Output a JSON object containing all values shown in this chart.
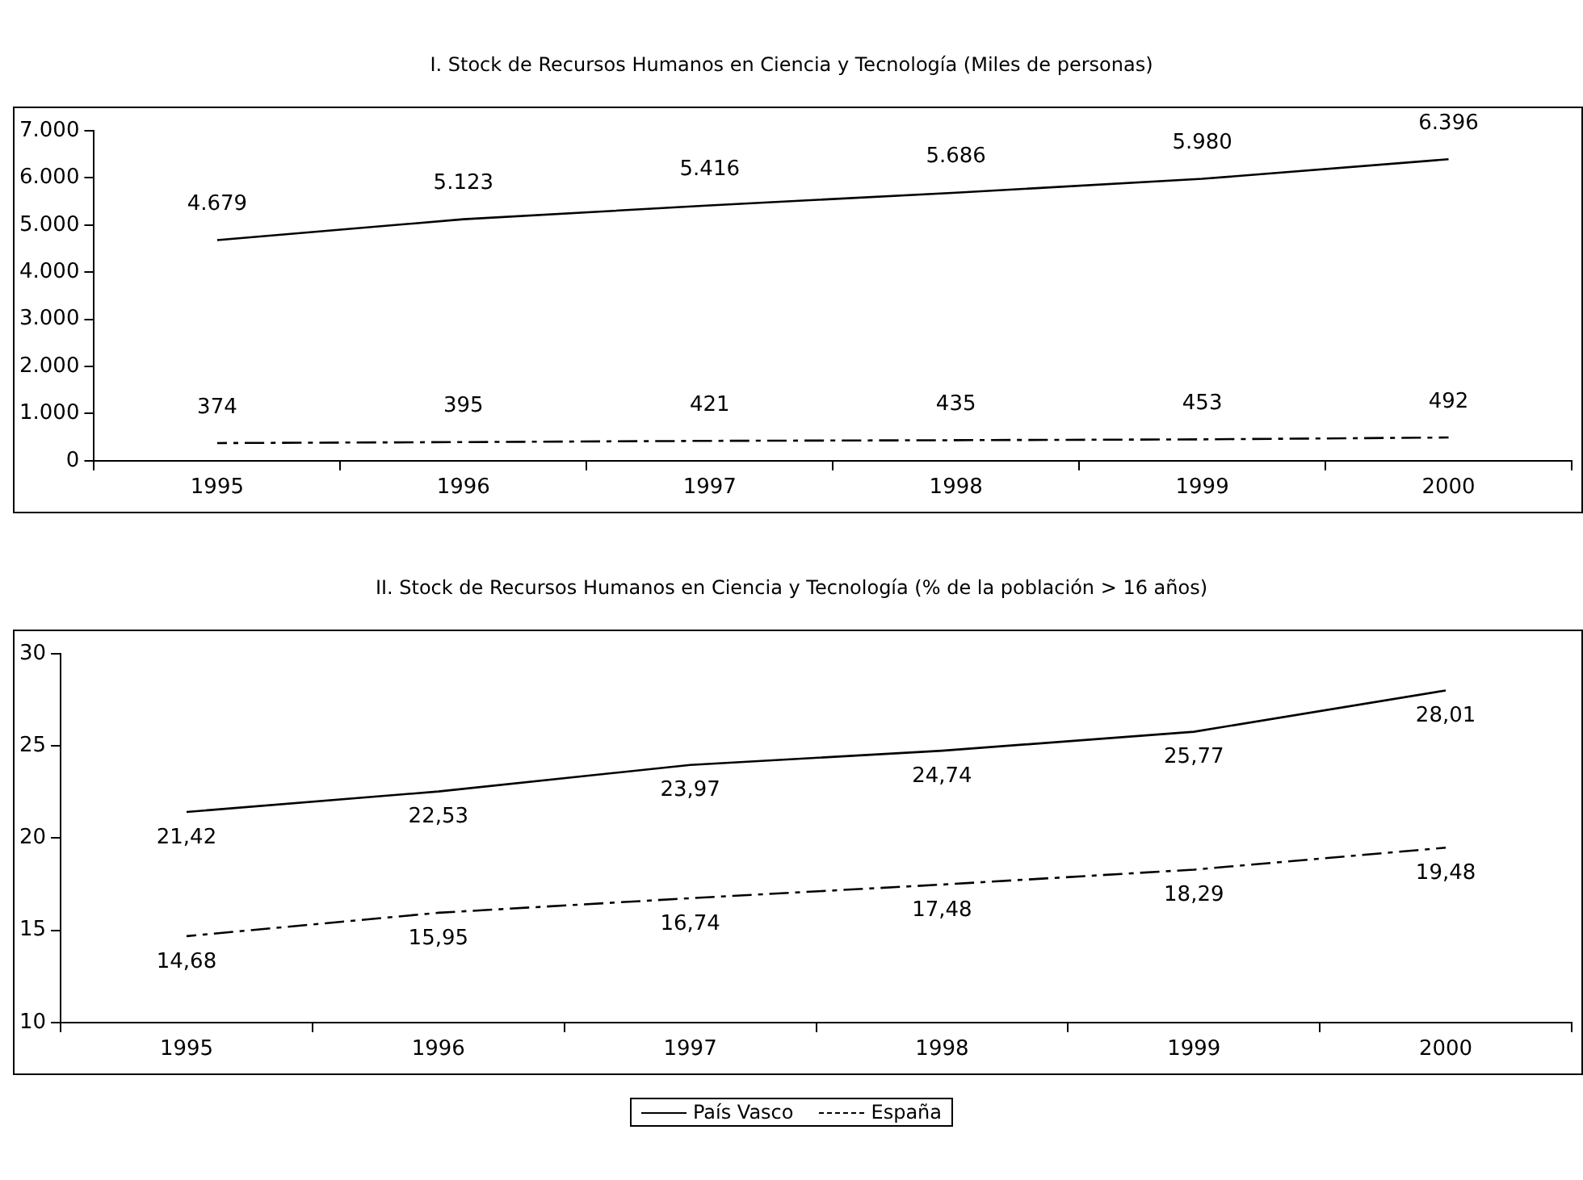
{
  "chart_data": [
    {
      "type": "line",
      "title": "I. Stock de Recursos Humanos en Ciencia  y Tecnología (Miles de personas)",
      "categories": [
        "1995",
        "1996",
        "1997",
        "1998",
        "1999",
        "2000"
      ],
      "series": [
        {
          "color": "#000000",
          "line_style": "solid",
          "values": [
            4679,
            5123,
            5416,
            5686,
            5980,
            6396
          ],
          "value_labels": [
            "4.679",
            "5.123",
            "5.416",
            "5.686",
            "5.980",
            "6.396"
          ]
        },
        {
          "color": "#000000",
          "line_style": "dashed",
          "values": [
            374,
            395,
            421,
            435,
            453,
            492
          ],
          "value_labels": [
            "374",
            "395",
            "421",
            "435",
            "453",
            "492"
          ]
        }
      ],
      "ylim": [
        0,
        7000
      ],
      "yticks": [
        {
          "value": 0,
          "label": "0"
        },
        {
          "value": 1000,
          "label": "1.000"
        },
        {
          "value": 2000,
          "label": "2.000"
        },
        {
          "value": 3000,
          "label": "3.000"
        },
        {
          "value": 4000,
          "label": "4.000"
        },
        {
          "value": 5000,
          "label": "5.000"
        },
        {
          "value": 6000,
          "label": "6.000"
        },
        {
          "value": 7000,
          "label": "7.000"
        }
      ],
      "grid": false,
      "legend": false,
      "marker": "none"
    },
    {
      "type": "line",
      "title": "II. Stock de Recursos Humanos en Ciencia  y Tecnología (% de la población > 16 años)",
      "categories": [
        "1995",
        "1996",
        "1997",
        "1998",
        "1999",
        "2000"
      ],
      "series": [
        {
          "name": "País Vasco",
          "color": "#000000",
          "line_style": "solid",
          "values": [
            21.42,
            22.53,
            23.97,
            24.74,
            25.77,
            28.01
          ],
          "value_labels": [
            "21,42",
            "22,53",
            "23,97",
            "24,74",
            "25,77",
            "28,01"
          ]
        },
        {
          "name": "España",
          "color": "#000000",
          "line_style": "dashed",
          "values": [
            14.68,
            15.95,
            16.74,
            17.48,
            18.29,
            19.48
          ],
          "value_labels": [
            "14,68",
            "15,95",
            "16,74",
            "17,48",
            "18,29",
            "19,48"
          ]
        }
      ],
      "ylim": [
        10,
        30
      ],
      "yticks": [
        10,
        15,
        20,
        25,
        30
      ],
      "grid": false,
      "legend": "bottom",
      "marker": "none"
    }
  ]
}
